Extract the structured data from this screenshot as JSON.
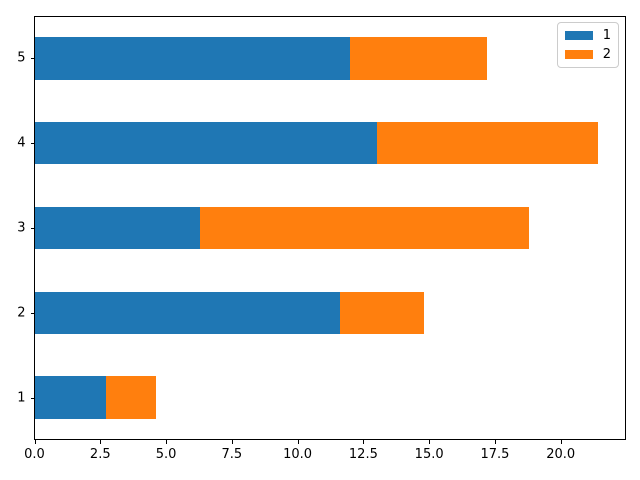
{
  "chart_data": {
    "type": "bar",
    "orientation": "horizontal",
    "stacked": true,
    "title": "",
    "xlabel": "",
    "ylabel": "",
    "categories": [
      "1",
      "2",
      "3",
      "4",
      "5"
    ],
    "series": [
      {
        "name": "1",
        "color": "#1f77b4",
        "values": [
          2.7,
          11.6,
          6.3,
          13.0,
          12.0
        ]
      },
      {
        "name": "2",
        "color": "#ff7f0e",
        "values": [
          1.9,
          3.2,
          12.5,
          8.4,
          5.2
        ]
      }
    ],
    "x_ticks": {
      "values": [
        0,
        2.5,
        5,
        7.5,
        10,
        12.5,
        15,
        17.5,
        20
      ],
      "labels": [
        "0.0",
        "2.5",
        "5.0",
        "7.5",
        "10.0",
        "12.5",
        "15.0",
        "17.5",
        "20.0"
      ]
    },
    "xlim": [
      0,
      22.5
    ],
    "bar_width_fraction": 0.5,
    "grid": false,
    "legend": {
      "position": "upper right",
      "entries": [
        "1",
        "2"
      ]
    },
    "colors": {
      "axes_frame": "#000000",
      "legend_border": "#cccccc",
      "background": "#ffffff"
    }
  }
}
